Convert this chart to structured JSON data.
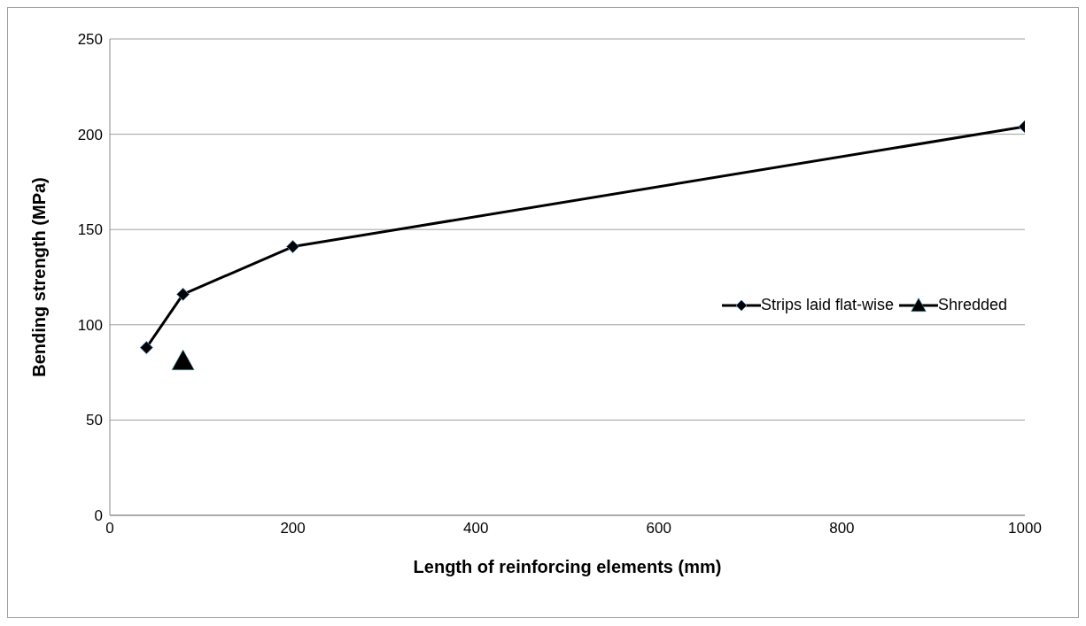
{
  "chart_data": {
    "type": "line",
    "xlabel": "Length of reinforcing elements (mm)",
    "ylabel": "Bending strength (MPa)",
    "xlim": [
      0,
      1000
    ],
    "xticks": [
      0,
      200,
      400,
      600,
      800,
      1000
    ],
    "ylim": [
      0,
      250
    ],
    "yticks": [
      0,
      50,
      100,
      150,
      200,
      250
    ],
    "grid": "y",
    "legend": "right",
    "line_style": "solid",
    "series": [
      {
        "name": "Strips laid flat-wise",
        "color": "#000000",
        "marker": "diamond",
        "x": [
          40,
          80,
          200,
          1000
        ],
        "values": [
          88,
          116,
          141,
          204
        ]
      },
      {
        "name": "Shredded",
        "color": "#000000",
        "marker": "triangle",
        "x": [
          80
        ],
        "values": [
          81
        ]
      }
    ]
  }
}
